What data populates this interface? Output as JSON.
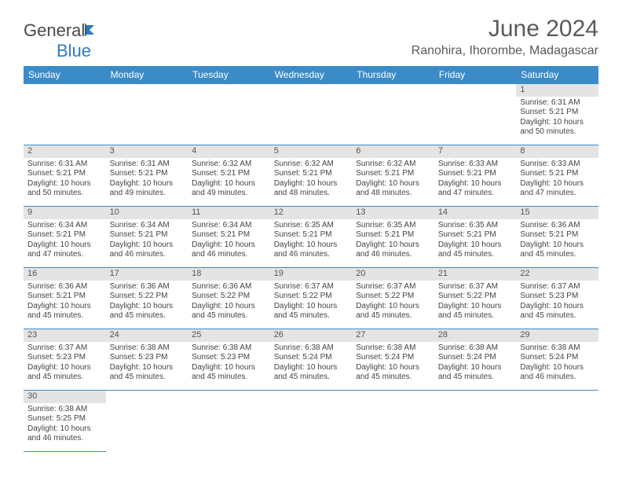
{
  "logo": {
    "text1": "General",
    "text2": "Blue"
  },
  "title": "June 2024",
  "location": "Ranohira, Ihorombe, Madagascar",
  "day_headers": [
    "Sunday",
    "Monday",
    "Tuesday",
    "Wednesday",
    "Thursday",
    "Friday",
    "Saturday"
  ],
  "colors": {
    "header_bg": "#3b8bc8",
    "header_text": "#ffffff",
    "daynum_bg": "#e4e4e4",
    "border": "#3b8bc8",
    "logo_gray": "#4a4a4a",
    "logo_blue": "#2b7bbf"
  },
  "weeks": [
    [
      null,
      null,
      null,
      null,
      null,
      null,
      {
        "n": "1",
        "sr": "6:31 AM",
        "ss": "5:21 PM",
        "dl": "10 hours and 50 minutes."
      }
    ],
    [
      {
        "n": "2",
        "sr": "6:31 AM",
        "ss": "5:21 PM",
        "dl": "10 hours and 50 minutes."
      },
      {
        "n": "3",
        "sr": "6:31 AM",
        "ss": "5:21 PM",
        "dl": "10 hours and 49 minutes."
      },
      {
        "n": "4",
        "sr": "6:32 AM",
        "ss": "5:21 PM",
        "dl": "10 hours and 49 minutes."
      },
      {
        "n": "5",
        "sr": "6:32 AM",
        "ss": "5:21 PM",
        "dl": "10 hours and 48 minutes."
      },
      {
        "n": "6",
        "sr": "6:32 AM",
        "ss": "5:21 PM",
        "dl": "10 hours and 48 minutes."
      },
      {
        "n": "7",
        "sr": "6:33 AM",
        "ss": "5:21 PM",
        "dl": "10 hours and 47 minutes."
      },
      {
        "n": "8",
        "sr": "6:33 AM",
        "ss": "5:21 PM",
        "dl": "10 hours and 47 minutes."
      }
    ],
    [
      {
        "n": "9",
        "sr": "6:34 AM",
        "ss": "5:21 PM",
        "dl": "10 hours and 47 minutes."
      },
      {
        "n": "10",
        "sr": "6:34 AM",
        "ss": "5:21 PM",
        "dl": "10 hours and 46 minutes."
      },
      {
        "n": "11",
        "sr": "6:34 AM",
        "ss": "5:21 PM",
        "dl": "10 hours and 46 minutes."
      },
      {
        "n": "12",
        "sr": "6:35 AM",
        "ss": "5:21 PM",
        "dl": "10 hours and 46 minutes."
      },
      {
        "n": "13",
        "sr": "6:35 AM",
        "ss": "5:21 PM",
        "dl": "10 hours and 46 minutes."
      },
      {
        "n": "14",
        "sr": "6:35 AM",
        "ss": "5:21 PM",
        "dl": "10 hours and 45 minutes."
      },
      {
        "n": "15",
        "sr": "6:36 AM",
        "ss": "5:21 PM",
        "dl": "10 hours and 45 minutes."
      }
    ],
    [
      {
        "n": "16",
        "sr": "6:36 AM",
        "ss": "5:21 PM",
        "dl": "10 hours and 45 minutes."
      },
      {
        "n": "17",
        "sr": "6:36 AM",
        "ss": "5:22 PM",
        "dl": "10 hours and 45 minutes."
      },
      {
        "n": "18",
        "sr": "6:36 AM",
        "ss": "5:22 PM",
        "dl": "10 hours and 45 minutes."
      },
      {
        "n": "19",
        "sr": "6:37 AM",
        "ss": "5:22 PM",
        "dl": "10 hours and 45 minutes."
      },
      {
        "n": "20",
        "sr": "6:37 AM",
        "ss": "5:22 PM",
        "dl": "10 hours and 45 minutes."
      },
      {
        "n": "21",
        "sr": "6:37 AM",
        "ss": "5:22 PM",
        "dl": "10 hours and 45 minutes."
      },
      {
        "n": "22",
        "sr": "6:37 AM",
        "ss": "5:23 PM",
        "dl": "10 hours and 45 minutes."
      }
    ],
    [
      {
        "n": "23",
        "sr": "6:37 AM",
        "ss": "5:23 PM",
        "dl": "10 hours and 45 minutes."
      },
      {
        "n": "24",
        "sr": "6:38 AM",
        "ss": "5:23 PM",
        "dl": "10 hours and 45 minutes."
      },
      {
        "n": "25",
        "sr": "6:38 AM",
        "ss": "5:23 PM",
        "dl": "10 hours and 45 minutes."
      },
      {
        "n": "26",
        "sr": "6:38 AM",
        "ss": "5:24 PM",
        "dl": "10 hours and 45 minutes."
      },
      {
        "n": "27",
        "sr": "6:38 AM",
        "ss": "5:24 PM",
        "dl": "10 hours and 45 minutes."
      },
      {
        "n": "28",
        "sr": "6:38 AM",
        "ss": "5:24 PM",
        "dl": "10 hours and 45 minutes."
      },
      {
        "n": "29",
        "sr": "6:38 AM",
        "ss": "5:24 PM",
        "dl": "10 hours and 46 minutes."
      }
    ],
    [
      {
        "n": "30",
        "sr": "6:38 AM",
        "ss": "5:25 PM",
        "dl": "10 hours and 46 minutes."
      },
      null,
      null,
      null,
      null,
      null,
      null
    ]
  ],
  "labels": {
    "sunrise": "Sunrise: ",
    "sunset": "Sunset: ",
    "daylight": "Daylight: "
  }
}
